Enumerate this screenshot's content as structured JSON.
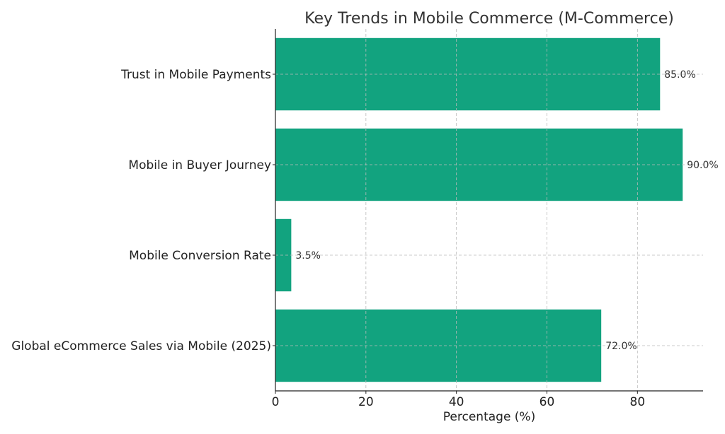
{
  "chart_data": {
    "type": "bar",
    "orientation": "horizontal",
    "title": "Key Trends in Mobile Commerce (M-Commerce)",
    "xlabel": "Percentage (%)",
    "ylabel": "",
    "categories": [
      "Global eCommerce Sales via Mobile (2025)",
      "Mobile Conversion Rate",
      "Mobile in Buyer Journey",
      "Trust in Mobile Payments"
    ],
    "values": [
      72.0,
      3.5,
      90.0,
      85.0
    ],
    "data_labels": [
      "72.0%",
      "3.5%",
      "90.0%",
      "85.0%"
    ],
    "xlim": [
      0,
      94.5
    ],
    "xticks": [
      0,
      20,
      40,
      60,
      80
    ],
    "xtick_labels": [
      "0",
      "20",
      "40",
      "60",
      "80"
    ],
    "grid": true,
    "grid_style": "dashed",
    "bar_color": "#12a37f"
  }
}
